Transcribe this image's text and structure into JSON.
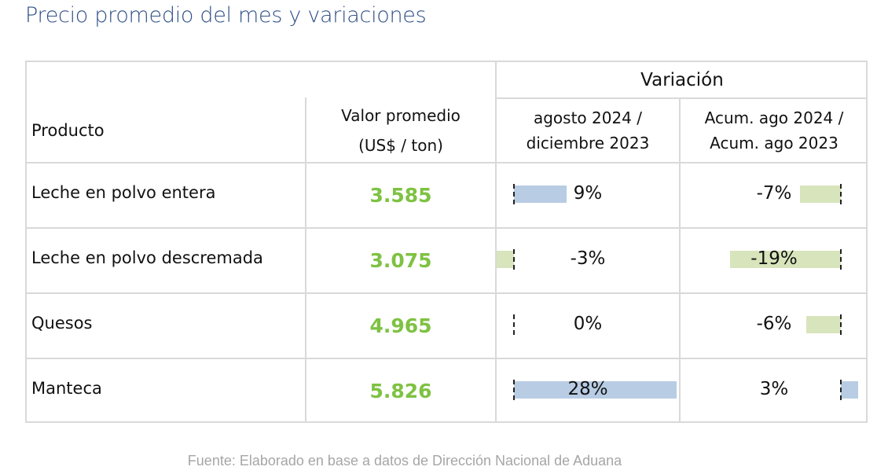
{
  "title": "Precio promedio del mes y variaciones",
  "colors": {
    "title": "#2f4f86",
    "value": "#7ec242",
    "positive_bar": "#b8cce4",
    "negative_bar": "#d8e4bc",
    "grid": "#d9d9d9"
  },
  "chart_data": {
    "type": "table",
    "title": "Precio promedio del mes y variaciones",
    "group_header": "Variación",
    "columns": {
      "product": "Producto",
      "value_line1": "Valor promedio",
      "value_line2": "(US$ / ton)",
      "var1_line1": "agosto 2024 /",
      "var1_line2": "diciembre 2023",
      "var2_line1": "Acum. ago 2024 /",
      "var2_line2": "Acum. ago 2023"
    },
    "rows": [
      {
        "product": "Leche en polvo entera",
        "value": "3.585",
        "var1": 9,
        "var1_label": "9%",
        "var2": -7,
        "var2_label": "-7%"
      },
      {
        "product": "Leche en polvo descremada",
        "value": "3.075",
        "var1": -3,
        "var1_label": "-3%",
        "var2": -19,
        "var2_label": "-19%"
      },
      {
        "product": "Quesos",
        "value": "4.965",
        "var1": 0,
        "var1_label": "0%",
        "var2": -6,
        "var2_label": "-6%"
      },
      {
        "product": "Manteca",
        "value": "5.826",
        "var1": 28,
        "var1_label": "28%",
        "var2": 3,
        "var2_label": "3%"
      }
    ]
  },
  "source": "Fuente: Elaborado en base a datos de Dirección Nacional de Aduana"
}
